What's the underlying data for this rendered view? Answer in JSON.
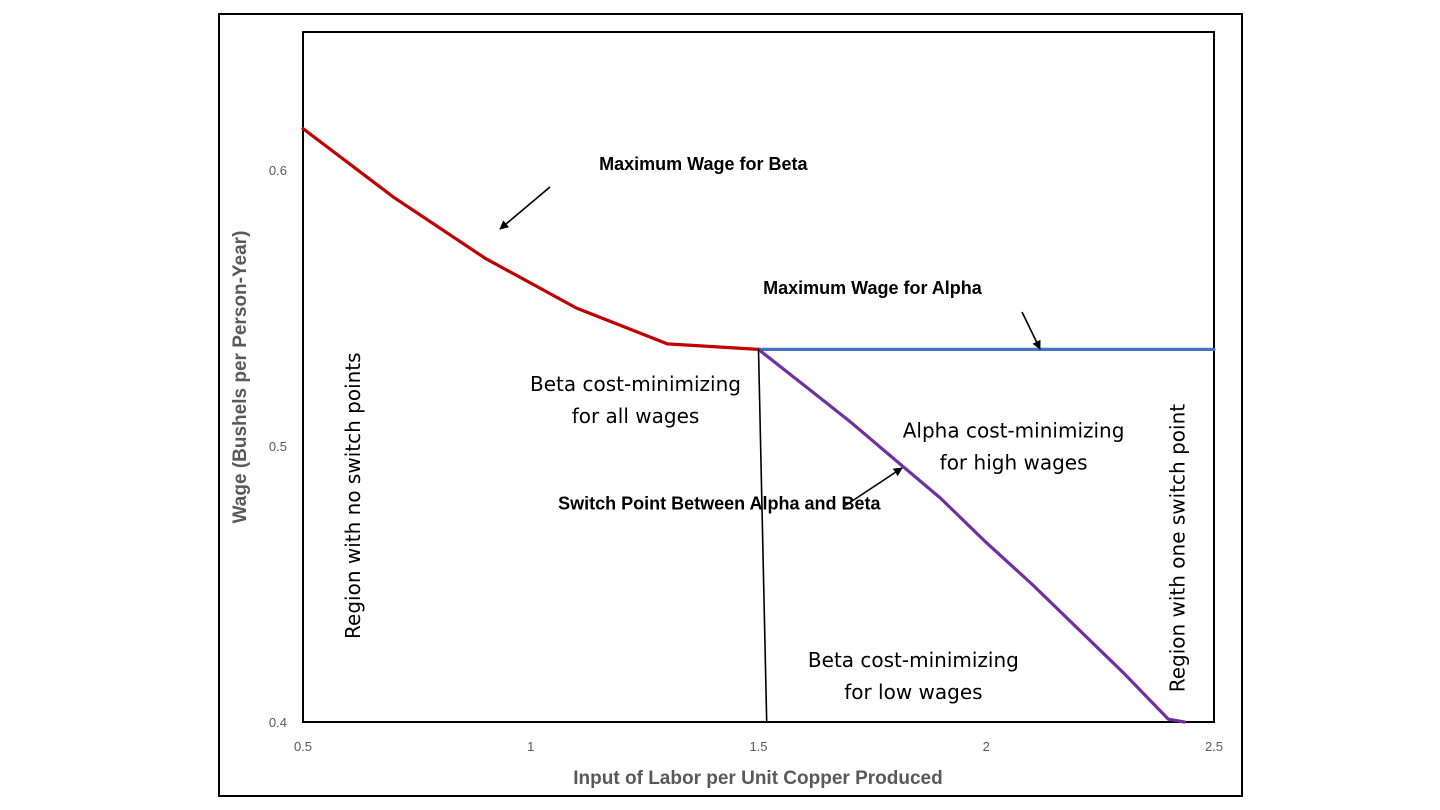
{
  "chart_data": {
    "type": "line",
    "xlabel": "Input of Labor per Unit Copper Produced",
    "ylabel": "Wage (Bushels per Person-Year)",
    "xlim": [
      0.5,
      2.5
    ],
    "ylim": [
      0.4,
      0.65
    ],
    "x_ticks": [
      "0.5",
      "1",
      "1.5",
      "2",
      "2.5"
    ],
    "y_ticks": [
      "0.4",
      "0.5",
      "0.6"
    ],
    "y_tick_values": [
      0.4,
      0.5,
      0.6
    ],
    "grid": false,
    "series": [
      {
        "name": "Maximum Wage for Beta",
        "color": "#c00000",
        "x": [
          0.5,
          0.7,
          0.9,
          1.1,
          1.3,
          1.5
        ],
        "y": [
          0.615,
          0.59,
          0.568,
          0.55,
          0.537,
          0.535
        ]
      },
      {
        "name": "Maximum Wage for Alpha",
        "color": "#4472c4",
        "x": [
          1.5,
          2.5
        ],
        "y": [
          0.535,
          0.535
        ]
      },
      {
        "name": "Switch Point Between Alpha and Beta",
        "color": "#7030a0",
        "x": [
          1.5,
          1.6,
          1.7,
          1.8,
          1.9,
          2.0,
          2.1,
          2.2,
          2.3,
          2.4,
          2.435
        ],
        "y": [
          0.535,
          0.522,
          0.509,
          0.495,
          0.481,
          0.465,
          0.45,
          0.434,
          0.418,
          0.401,
          0.4
        ]
      },
      {
        "name": "",
        "color": "#000000",
        "x": [
          1.5,
          1.518
        ],
        "y": [
          0.535,
          0.4
        ]
      }
    ],
    "annotations": [
      {
        "id": "beta-max",
        "text": "Maximum Wage for Beta",
        "x": 1.15,
        "y": 0.6
      },
      {
        "id": "alpha-max",
        "text": "Maximum Wage for Alpha",
        "x": 1.51,
        "y": 0.555
      },
      {
        "id": "switch",
        "text": "Switch Point Between Alpha and Beta",
        "x": 1.06,
        "y": 0.477
      }
    ],
    "regions": [
      {
        "id": "beta-all",
        "lines": [
          "Beta cost-minimizing",
          "for all wages"
        ],
        "x": 1.23,
        "y": 0.52
      },
      {
        "id": "alpha-high",
        "lines": [
          "Alpha cost-minimizing",
          "for high wages"
        ],
        "x": 2.06,
        "y": 0.503
      },
      {
        "id": "beta-low",
        "lines": [
          "Beta cost-minimizing",
          "for low wages"
        ],
        "x": 1.84,
        "y": 0.42
      },
      {
        "id": "no-switch",
        "lines": [
          "Region with no switch points"
        ],
        "x": 0.625,
        "y": 0.482,
        "rotate": -90
      },
      {
        "id": "one-switch",
        "lines": [
          "Region with one switch point"
        ],
        "x": 2.435,
        "y": 0.463,
        "rotate": -90
      }
    ]
  }
}
